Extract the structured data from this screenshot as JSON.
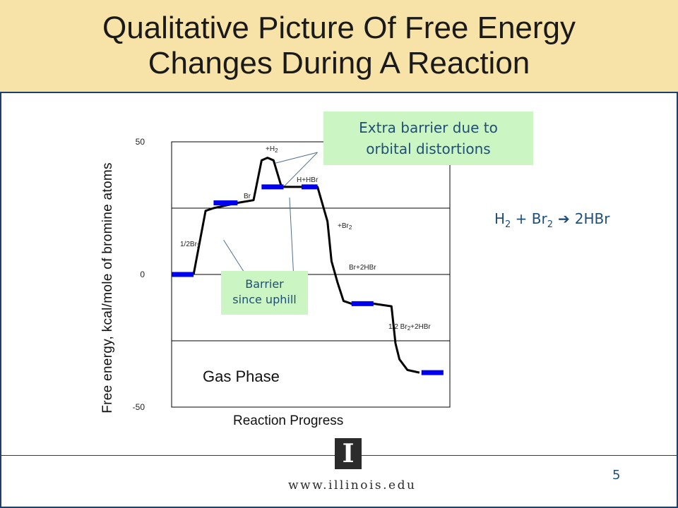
{
  "slide": {
    "title_line1": "Qualitative Picture Of Free Energy",
    "title_line2": "Changes During A Reaction",
    "callout_top_line1": "Extra barrier due to",
    "callout_top_line2": "orbital distortions",
    "callout_bottom_line1": "Barrier",
    "callout_bottom_line2": "since uphill",
    "gas_phase": "Gas Phase",
    "equation": {
      "h": "H",
      "h_sub": "2",
      "plus": " + Br",
      "br_sub": "2",
      "arrow": " ➔ ",
      "product": "2HBr"
    },
    "footer_url": "www.illinois.edu",
    "logo_letter": "I",
    "page_number": "5",
    "colors": {
      "band": "#f7e3a8",
      "frame": "#1f3f6b",
      "level": "#0000ee",
      "callout_bg": "#ccf5c4",
      "callout_text": "#1f4e79"
    }
  },
  "chart_data": {
    "type": "line",
    "xlabel": "Reaction Progress",
    "ylabel": "Free energy, kcal/mole of bromine atoms",
    "ylim": [
      -50,
      50
    ],
    "yticks": [
      "50",
      "0",
      "-50"
    ],
    "grid": true,
    "levels": [
      {
        "label": "",
        "x": [
          0.0,
          0.11
        ],
        "y": 0
      },
      {
        "label": "1/2Br",
        "label_sub": "2",
        "x": [
          0.21,
          0.33
        ],
        "y": 27
      },
      {
        "label": "Br",
        "label_sub": "",
        "x": [
          0.45,
          0.56
        ],
        "y": 33
      },
      {
        "label": "H+HBr",
        "label_sub": "",
        "x": [
          0.65,
          0.73
        ],
        "y": 33
      },
      {
        "label": "+Br",
        "label_sub": "2",
        "x": [
          0.65,
          0.73
        ],
        "y": 33
      },
      {
        "label": "Br+2HBr",
        "label_sub": "",
        "x": [
          0.9,
          1.01
        ],
        "y": -11
      },
      {
        "label": "1/2 Br",
        "label_sub": "2",
        "label_tail": "+2HBr",
        "x": [
          1.25,
          1.36
        ],
        "y": -37
      }
    ],
    "energy_path": [
      [
        0.11,
        0
      ],
      [
        0.14,
        12
      ],
      [
        0.17,
        24
      ],
      [
        0.21,
        25
      ],
      [
        0.33,
        27
      ],
      [
        0.41,
        28
      ],
      [
        0.45,
        43
      ],
      [
        0.48,
        44
      ],
      [
        0.51,
        43
      ],
      [
        0.55,
        33
      ],
      [
        0.73,
        33
      ],
      [
        0.78,
        20
      ],
      [
        0.8,
        5
      ],
      [
        0.83,
        -3
      ],
      [
        0.86,
        -10
      ],
      [
        0.9,
        -11
      ],
      [
        1.01,
        -11
      ],
      [
        1.1,
        -12
      ],
      [
        1.12,
        -26
      ],
      [
        1.14,
        -32
      ],
      [
        1.18,
        -36
      ],
      [
        1.24,
        -37
      ]
    ],
    "callout_pointers": [
      {
        "from": [
          0.73,
          46
        ],
        "to": [
          0.52,
          42
        ]
      },
      {
        "from": [
          0.73,
          46
        ],
        "to": [
          0.56,
          33
        ]
      },
      {
        "from": [
          0.37,
          0
        ],
        "to": [
          0.26,
          13
        ]
      },
      {
        "from": [
          0.61,
          0
        ],
        "to": [
          0.59,
          29
        ]
      }
    ]
  }
}
